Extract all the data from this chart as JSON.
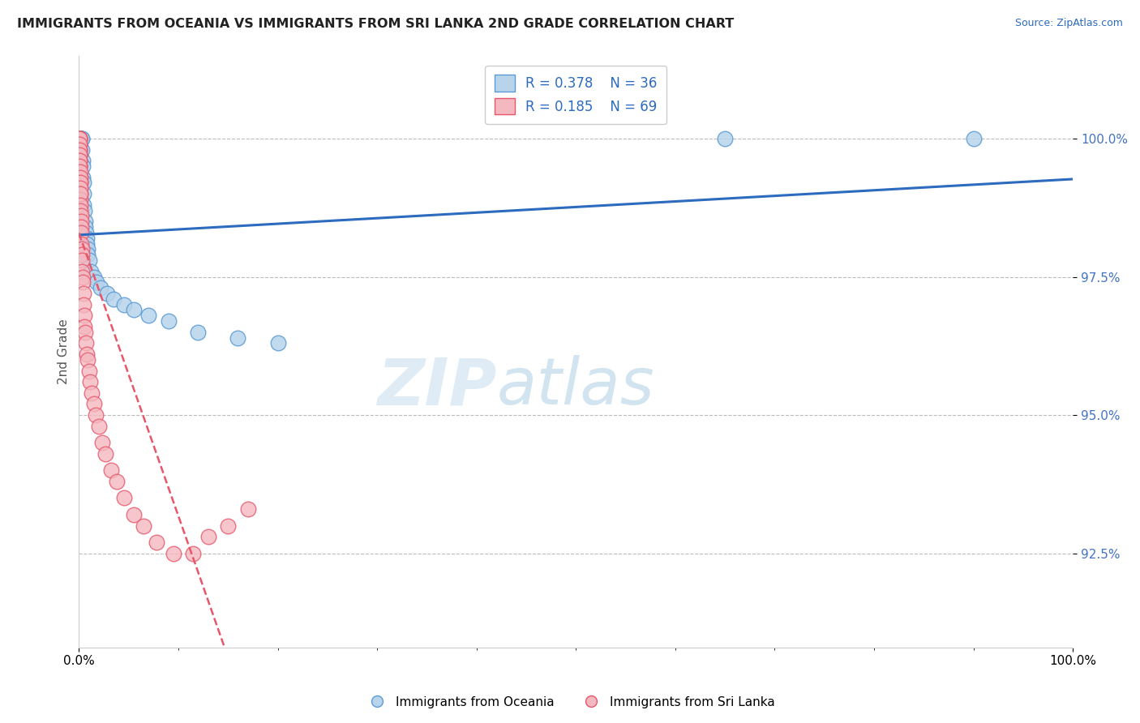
{
  "title": "IMMIGRANTS FROM OCEANIA VS IMMIGRANTS FROM SRI LANKA 2ND GRADE CORRELATION CHART",
  "source_text": "Source: ZipAtlas.com",
  "ylabel": "2nd Grade",
  "y_tick_values": [
    92.5,
    95.0,
    97.5,
    100.0
  ],
  "xlim": [
    0.0,
    100.0
  ],
  "ylim": [
    90.8,
    101.5
  ],
  "legend_blue_label": "Immigrants from Oceania",
  "legend_pink_label": "Immigrants from Sri Lanka",
  "R_blue": 0.378,
  "N_blue": 36,
  "R_pink": 0.185,
  "N_pink": 69,
  "watermark_zip": "ZIP",
  "watermark_atlas": "atlas",
  "blue_scatter_x": [
    0.18,
    0.22,
    0.25,
    0.28,
    0.3,
    0.33,
    0.35,
    0.38,
    0.4,
    0.42,
    0.45,
    0.5,
    0.55,
    0.6,
    0.65,
    0.7,
    0.75,
    0.8,
    0.85,
    0.9,
    1.0,
    1.2,
    1.5,
    1.8,
    2.2,
    2.8,
    3.5,
    4.5,
    5.5,
    7.0,
    9.0,
    12.0,
    16.0,
    20.0,
    65.0,
    90.0
  ],
  "blue_scatter_y": [
    100.0,
    100.0,
    100.0,
    100.0,
    100.0,
    99.8,
    99.6,
    99.5,
    99.3,
    99.2,
    99.0,
    98.8,
    98.7,
    98.5,
    98.4,
    98.3,
    98.2,
    98.1,
    98.0,
    97.9,
    97.8,
    97.6,
    97.5,
    97.4,
    97.3,
    97.2,
    97.1,
    97.0,
    96.9,
    96.8,
    96.7,
    96.5,
    96.4,
    96.3,
    100.0,
    100.0
  ],
  "pink_scatter_x": [
    0.02,
    0.02,
    0.02,
    0.02,
    0.03,
    0.03,
    0.03,
    0.04,
    0.04,
    0.04,
    0.05,
    0.05,
    0.05,
    0.06,
    0.06,
    0.07,
    0.07,
    0.08,
    0.08,
    0.09,
    0.09,
    0.1,
    0.1,
    0.11,
    0.12,
    0.12,
    0.13,
    0.14,
    0.15,
    0.16,
    0.17,
    0.18,
    0.19,
    0.2,
    0.22,
    0.24,
    0.26,
    0.28,
    0.3,
    0.33,
    0.36,
    0.4,
    0.44,
    0.48,
    0.53,
    0.58,
    0.65,
    0.72,
    0.8,
    0.9,
    1.0,
    1.1,
    1.3,
    1.5,
    1.7,
    2.0,
    2.3,
    2.7,
    3.2,
    3.8,
    4.5,
    5.5,
    6.5,
    7.8,
    9.5,
    11.5,
    13.0,
    15.0,
    17.0
  ],
  "pink_scatter_y": [
    100.0,
    100.0,
    99.8,
    99.7,
    100.0,
    99.9,
    99.7,
    100.0,
    99.8,
    99.6,
    99.9,
    99.7,
    99.5,
    99.8,
    99.6,
    99.7,
    99.5,
    99.6,
    99.4,
    99.5,
    99.3,
    99.4,
    99.2,
    99.3,
    99.2,
    99.0,
    99.1,
    98.9,
    99.0,
    98.8,
    98.7,
    98.6,
    98.5,
    98.4,
    98.3,
    98.1,
    98.0,
    97.9,
    97.8,
    97.6,
    97.5,
    97.4,
    97.2,
    97.0,
    96.8,
    96.6,
    96.5,
    96.3,
    96.1,
    96.0,
    95.8,
    95.6,
    95.4,
    95.2,
    95.0,
    94.8,
    94.5,
    94.3,
    94.0,
    93.8,
    93.5,
    93.2,
    93.0,
    92.7,
    92.5,
    92.5,
    92.8,
    93.0,
    93.3
  ],
  "blue_color": "#b8d4ea",
  "blue_edge_color": "#5b9bd5",
  "pink_color": "#f4b8c0",
  "pink_edge_color": "#e8566a",
  "trendline_blue_color": "#2d6bbf",
  "trendline_pink_color": "#e8566a",
  "grid_color": "#bbbbbb",
  "background_color": "#ffffff",
  "ytick_color": "#4472c4"
}
